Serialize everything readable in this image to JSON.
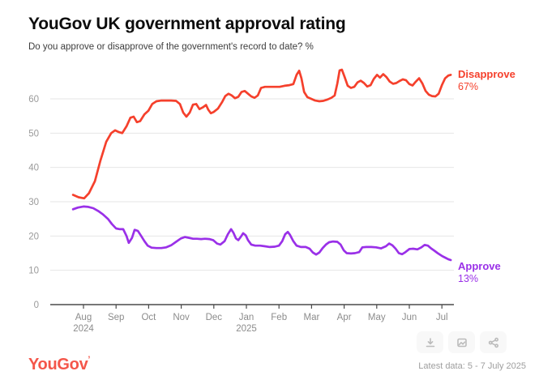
{
  "page": {
    "title": "YouGov UK government approval rating",
    "subtitle": "Do you approve or disapprove of the government's record to date? %",
    "footer": {
      "logo": "YouGov",
      "logo_mark": "’",
      "logo_color": "#F4564A",
      "latest_data": "Latest data: 5 - 7 July 2025"
    },
    "toolbar": {
      "icons": [
        "download-icon",
        "image-icon",
        "share-icon"
      ]
    }
  },
  "chart_data": {
    "type": "line",
    "title": "YouGov UK government approval rating",
    "subtitle": "Do you approve or disapprove of the government's record to date? %",
    "grid": "horizontal",
    "legend_position": "line-end-labels",
    "x_axis": {
      "unit": "months (0 = Aug 2024 tick, 11 = Jul 2025 tick)",
      "ticks": [
        {
          "label": "Aug",
          "year": "2024",
          "m": 0
        },
        {
          "label": "Sep",
          "m": 1
        },
        {
          "label": "Oct",
          "m": 2
        },
        {
          "label": "Nov",
          "m": 3
        },
        {
          "label": "Dec",
          "m": 4
        },
        {
          "label": "Jan",
          "year": "2025",
          "m": 5
        },
        {
          "label": "Feb",
          "m": 6
        },
        {
          "label": "Mar",
          "m": 7
        },
        {
          "label": "Apr",
          "m": 8
        },
        {
          "label": "May",
          "m": 9
        },
        {
          "label": "Jun",
          "m": 10
        },
        {
          "label": "Jul",
          "m": 11
        }
      ]
    },
    "y_axis": {
      "min": 0,
      "max": 70,
      "ticks": [
        0,
        10,
        20,
        30,
        40,
        50,
        60
      ]
    },
    "series": [
      {
        "name": "Disapprove",
        "color": "#F5402C",
        "end_label": "67%",
        "end_value": 67,
        "points": [
          [
            -0.32,
            32
          ],
          [
            -0.15,
            31.3
          ],
          [
            0.02,
            31
          ],
          [
            0.17,
            32.5
          ],
          [
            0.35,
            36
          ],
          [
            0.52,
            42
          ],
          [
            0.7,
            47.5
          ],
          [
            0.85,
            50
          ],
          [
            0.97,
            50.8
          ],
          [
            1.09,
            50.3
          ],
          [
            1.19,
            50
          ],
          [
            1.32,
            52
          ],
          [
            1.44,
            54.5
          ],
          [
            1.54,
            54.8
          ],
          [
            1.64,
            53.2
          ],
          [
            1.74,
            53.5
          ],
          [
            1.87,
            55.5
          ],
          [
            1.99,
            56.5
          ],
          [
            2.11,
            58.5
          ],
          [
            2.24,
            59.3
          ],
          [
            2.39,
            59.5
          ],
          [
            2.54,
            59.5
          ],
          [
            2.69,
            59.5
          ],
          [
            2.84,
            59.4
          ],
          [
            2.96,
            58.5
          ],
          [
            3.06,
            56
          ],
          [
            3.16,
            54.8
          ],
          [
            3.26,
            56
          ],
          [
            3.36,
            58.3
          ],
          [
            3.46,
            58.5
          ],
          [
            3.56,
            57
          ],
          [
            3.66,
            57.5
          ],
          [
            3.76,
            58.2
          ],
          [
            3.83,
            56.8
          ],
          [
            3.91,
            55.8
          ],
          [
            4.0,
            56.2
          ],
          [
            4.13,
            57.2
          ],
          [
            4.25,
            59
          ],
          [
            4.35,
            60.8
          ],
          [
            4.45,
            61.5
          ],
          [
            4.55,
            61
          ],
          [
            4.65,
            60.2
          ],
          [
            4.75,
            60.6
          ],
          [
            4.85,
            62
          ],
          [
            4.95,
            62.3
          ],
          [
            5.05,
            61.5
          ],
          [
            5.15,
            60.7
          ],
          [
            5.25,
            60.3
          ],
          [
            5.35,
            61
          ],
          [
            5.45,
            63.2
          ],
          [
            5.57,
            63.5
          ],
          [
            5.72,
            63.5
          ],
          [
            5.87,
            63.5
          ],
          [
            6.02,
            63.5
          ],
          [
            6.17,
            63.8
          ],
          [
            6.32,
            64
          ],
          [
            6.44,
            64.3
          ],
          [
            6.54,
            67
          ],
          [
            6.62,
            68.2
          ],
          [
            6.69,
            66
          ],
          [
            6.77,
            62
          ],
          [
            6.87,
            60.5
          ],
          [
            6.99,
            60
          ],
          [
            7.11,
            59.5
          ],
          [
            7.24,
            59.3
          ],
          [
            7.36,
            59.4
          ],
          [
            7.49,
            59.8
          ],
          [
            7.61,
            60.3
          ],
          [
            7.71,
            61
          ],
          [
            7.79,
            64.5
          ],
          [
            7.86,
            68.3
          ],
          [
            7.93,
            68.5
          ],
          [
            8.01,
            66.5
          ],
          [
            8.11,
            63.8
          ],
          [
            8.21,
            63.2
          ],
          [
            8.31,
            63.5
          ],
          [
            8.41,
            64.8
          ],
          [
            8.51,
            65.3
          ],
          [
            8.61,
            64.6
          ],
          [
            8.71,
            63.6
          ],
          [
            8.81,
            64
          ],
          [
            8.91,
            65.8
          ],
          [
            9.01,
            67
          ],
          [
            9.1,
            66.2
          ],
          [
            9.2,
            67.2
          ],
          [
            9.3,
            66.3
          ],
          [
            9.4,
            65
          ],
          [
            9.5,
            64.4
          ],
          [
            9.6,
            64.6
          ],
          [
            9.7,
            65.2
          ],
          [
            9.8,
            65.7
          ],
          [
            9.9,
            65.4
          ],
          [
            10.0,
            64.3
          ],
          [
            10.1,
            63.9
          ],
          [
            10.2,
            65
          ],
          [
            10.3,
            66
          ],
          [
            10.4,
            64.5
          ],
          [
            10.5,
            62.3
          ],
          [
            10.6,
            61.2
          ],
          [
            10.7,
            60.8
          ],
          [
            10.8,
            60.7
          ],
          [
            10.9,
            61.5
          ],
          [
            11.0,
            64
          ],
          [
            11.1,
            66
          ],
          [
            11.2,
            66.8
          ],
          [
            11.27,
            67
          ]
        ]
      },
      {
        "name": "Approve",
        "color": "#9A30E8",
        "end_label": "13%",
        "end_value": 13,
        "points": [
          [
            -0.32,
            27.8
          ],
          [
            -0.17,
            28.3
          ],
          [
            0.0,
            28.6
          ],
          [
            0.15,
            28.5
          ],
          [
            0.3,
            28.1
          ],
          [
            0.45,
            27.3
          ],
          [
            0.6,
            26.3
          ],
          [
            0.75,
            25
          ],
          [
            0.87,
            23.5
          ],
          [
            1.0,
            22.2
          ],
          [
            1.12,
            22
          ],
          [
            1.22,
            22
          ],
          [
            1.32,
            20
          ],
          [
            1.39,
            18
          ],
          [
            1.49,
            19.5
          ],
          [
            1.57,
            21.8
          ],
          [
            1.67,
            21.5
          ],
          [
            1.77,
            20
          ],
          [
            1.87,
            18.5
          ],
          [
            1.97,
            17.2
          ],
          [
            2.09,
            16.6
          ],
          [
            2.24,
            16.5
          ],
          [
            2.39,
            16.5
          ],
          [
            2.54,
            16.7
          ],
          [
            2.69,
            17.3
          ],
          [
            2.84,
            18.3
          ],
          [
            2.99,
            19.3
          ],
          [
            3.11,
            19.7
          ],
          [
            3.23,
            19.5
          ],
          [
            3.36,
            19.2
          ],
          [
            3.48,
            19.2
          ],
          [
            3.61,
            19.1
          ],
          [
            3.73,
            19.2
          ],
          [
            3.86,
            19.1
          ],
          [
            3.98,
            18.8
          ],
          [
            4.1,
            17.8
          ],
          [
            4.2,
            17.5
          ],
          [
            4.33,
            18.5
          ],
          [
            4.43,
            20.5
          ],
          [
            4.53,
            22
          ],
          [
            4.6,
            21
          ],
          [
            4.68,
            19.3
          ],
          [
            4.75,
            18.8
          ],
          [
            4.83,
            19.8
          ],
          [
            4.9,
            20.8
          ],
          [
            4.98,
            20.2
          ],
          [
            5.05,
            18.8
          ],
          [
            5.15,
            17.5
          ],
          [
            5.27,
            17.2
          ],
          [
            5.42,
            17.2
          ],
          [
            5.57,
            17
          ],
          [
            5.72,
            16.8
          ],
          [
            5.87,
            16.9
          ],
          [
            6.0,
            17.2
          ],
          [
            6.1,
            18.5
          ],
          [
            6.19,
            20.5
          ],
          [
            6.27,
            21.2
          ],
          [
            6.34,
            20.3
          ],
          [
            6.44,
            18.5
          ],
          [
            6.54,
            17.2
          ],
          [
            6.67,
            16.8
          ],
          [
            6.82,
            16.8
          ],
          [
            6.94,
            16.3
          ],
          [
            7.04,
            15.2
          ],
          [
            7.14,
            14.6
          ],
          [
            7.24,
            15.2
          ],
          [
            7.34,
            16.5
          ],
          [
            7.44,
            17.5
          ],
          [
            7.54,
            18.2
          ],
          [
            7.66,
            18.4
          ],
          [
            7.79,
            18.3
          ],
          [
            7.89,
            17.5
          ],
          [
            7.99,
            15.8
          ],
          [
            8.08,
            15
          ],
          [
            8.21,
            14.9
          ],
          [
            8.33,
            15
          ],
          [
            8.46,
            15.3
          ],
          [
            8.56,
            16.7
          ],
          [
            8.68,
            16.8
          ],
          [
            8.83,
            16.8
          ],
          [
            8.98,
            16.7
          ],
          [
            9.13,
            16.4
          ],
          [
            9.28,
            17
          ],
          [
            9.38,
            17.8
          ],
          [
            9.48,
            17.3
          ],
          [
            9.58,
            16.3
          ],
          [
            9.68,
            15
          ],
          [
            9.78,
            14.7
          ],
          [
            9.88,
            15.3
          ],
          [
            10.0,
            16.2
          ],
          [
            10.12,
            16.3
          ],
          [
            10.25,
            16.1
          ],
          [
            10.37,
            16.7
          ],
          [
            10.47,
            17.4
          ],
          [
            10.57,
            17.2
          ],
          [
            10.67,
            16.4
          ],
          [
            10.77,
            15.7
          ],
          [
            10.87,
            15
          ],
          [
            11.0,
            14.2
          ],
          [
            11.1,
            13.7
          ],
          [
            11.2,
            13.2
          ],
          [
            11.27,
            13
          ]
        ]
      }
    ]
  }
}
